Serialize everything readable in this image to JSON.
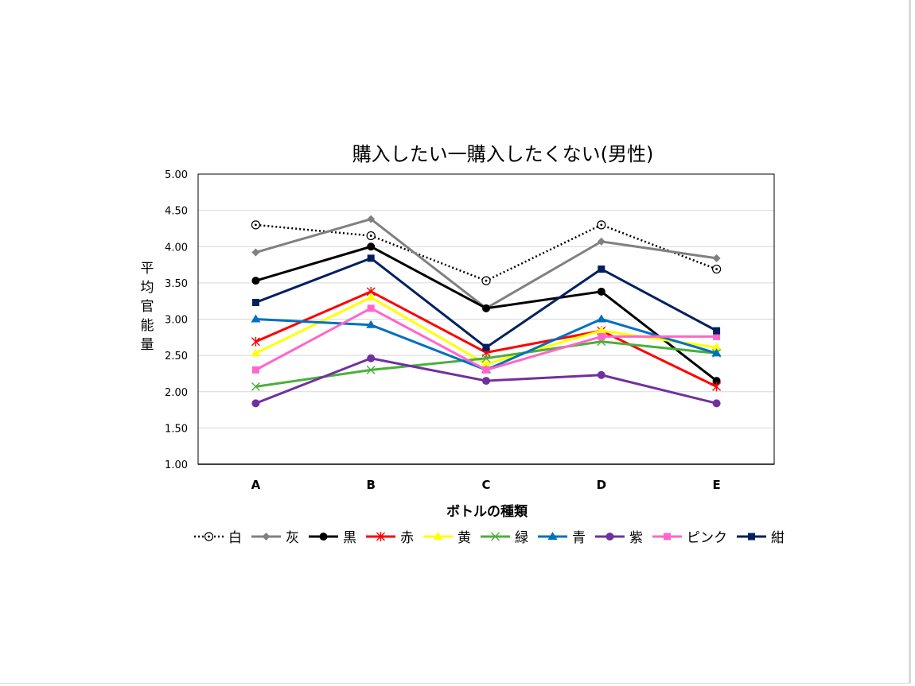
{
  "chart_data": {
    "type": "line",
    "title": "購入したい一購入したくない(男性)",
    "xlabel": "ボトルの種類",
    "ylabel": "平均官能量",
    "categories": [
      "A",
      "B",
      "C",
      "D",
      "E"
    ],
    "ylim": [
      1.0,
      5.0
    ],
    "yticks": [
      "1.00",
      "1.50",
      "2.00",
      "2.50",
      "3.00",
      "3.50",
      "4.00",
      "4.50",
      "5.00"
    ],
    "grid": true,
    "legend_position": "bottom",
    "series": [
      {
        "name": "白",
        "color": "#000000",
        "marker": "circle-dot",
        "dash": true,
        "values": [
          4.3,
          4.15,
          3.53,
          4.3,
          3.69
        ]
      },
      {
        "name": "灰",
        "color": "#808080",
        "marker": "diamond",
        "dash": false,
        "values": [
          3.92,
          4.38,
          3.15,
          4.07,
          3.84
        ]
      },
      {
        "name": "黒",
        "color": "#000000",
        "marker": "circle",
        "dash": false,
        "values": [
          3.53,
          4.0,
          3.15,
          3.38,
          2.15
        ]
      },
      {
        "name": "赤",
        "color": "#ff0000",
        "marker": "star",
        "dash": false,
        "values": [
          2.69,
          3.38,
          2.54,
          2.84,
          2.07
        ]
      },
      {
        "name": "黄",
        "color": "#ffff00",
        "marker": "triangle",
        "dash": false,
        "values": [
          2.53,
          3.3,
          2.38,
          2.84,
          2.61
        ]
      },
      {
        "name": "緑",
        "color": "#4caf3c",
        "marker": "x",
        "dash": false,
        "values": [
          2.07,
          2.3,
          2.46,
          2.69,
          2.53
        ]
      },
      {
        "name": "青",
        "color": "#0070c0",
        "marker": "triangle",
        "dash": false,
        "values": [
          3.0,
          2.92,
          2.3,
          3.0,
          2.53
        ]
      },
      {
        "name": "紫",
        "color": "#7030a0",
        "marker": "circle",
        "dash": false,
        "values": [
          1.84,
          2.46,
          2.15,
          2.23,
          1.84
        ]
      },
      {
        "name": "ピンク",
        "color": "#ff66cc",
        "marker": "square",
        "dash": false,
        "values": [
          2.3,
          3.15,
          2.3,
          2.76,
          2.76
        ]
      },
      {
        "name": "紺",
        "color": "#002060",
        "marker": "square",
        "dash": false,
        "values": [
          3.23,
          3.84,
          2.61,
          3.69,
          2.84
        ]
      }
    ]
  }
}
